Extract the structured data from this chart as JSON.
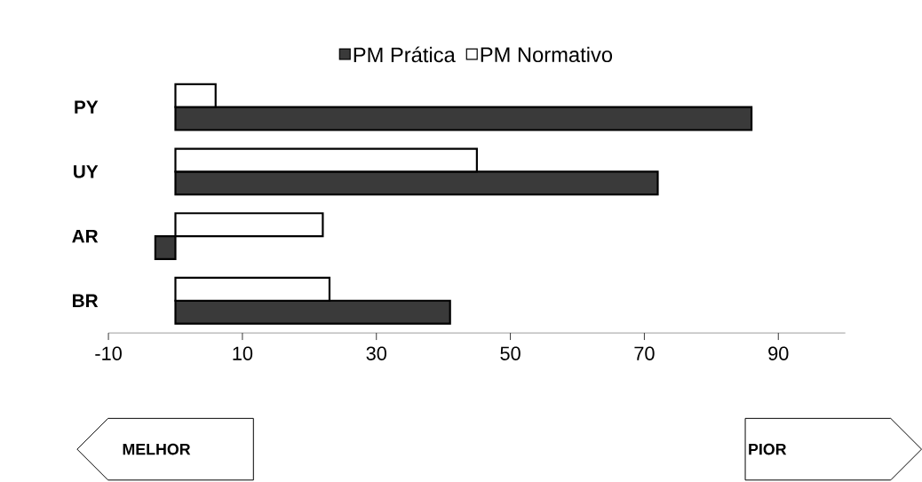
{
  "chart_data": {
    "type": "bar",
    "orientation": "horizontal",
    "categories": [
      "PY",
      "UY",
      "AR",
      "BR"
    ],
    "series": [
      {
        "name": "PM Prática",
        "color": "#3a3a3a",
        "values": [
          86,
          72,
          -3,
          41
        ]
      },
      {
        "name": "PM Normativo",
        "color": "#ffffff",
        "values": [
          6,
          45,
          22,
          23
        ]
      }
    ],
    "xlim": [
      -10,
      100
    ],
    "xticks": [
      -10,
      10,
      30,
      50,
      70,
      90
    ],
    "legend": "top",
    "grid": false,
    "annotations": [
      "MELHOR",
      "PIOR"
    ]
  }
}
